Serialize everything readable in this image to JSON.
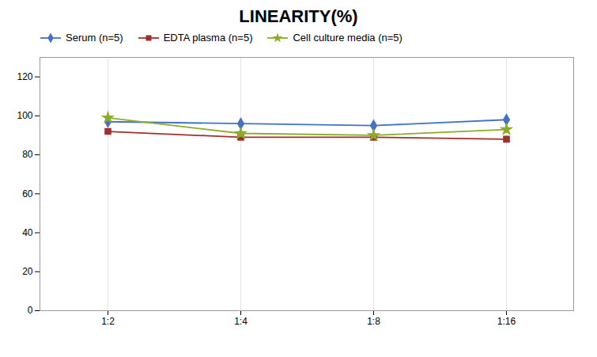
{
  "chart_data": {
    "type": "line",
    "title": "LINEARITY(%)",
    "categories": [
      "1:2",
      "1:4",
      "1:8",
      "1:16"
    ],
    "series": [
      {
        "name": "Serum (n=5)",
        "color": "#4472C4",
        "marker": "diamond",
        "values": [
          97,
          96,
          95,
          98
        ]
      },
      {
        "name": "EDTA plasma (n=5)",
        "color": "#A0312A",
        "marker": "square",
        "values": [
          92,
          89,
          89,
          88
        ]
      },
      {
        "name": "Cell culture media (n=5)",
        "color": "#8BAD28",
        "marker": "star",
        "values": [
          99,
          91,
          90,
          93
        ]
      }
    ],
    "ylim": [
      0,
      130
    ],
    "yticks": [
      0,
      20,
      40,
      60,
      80,
      100,
      120
    ],
    "grid": "x",
    "legend": "top"
  }
}
